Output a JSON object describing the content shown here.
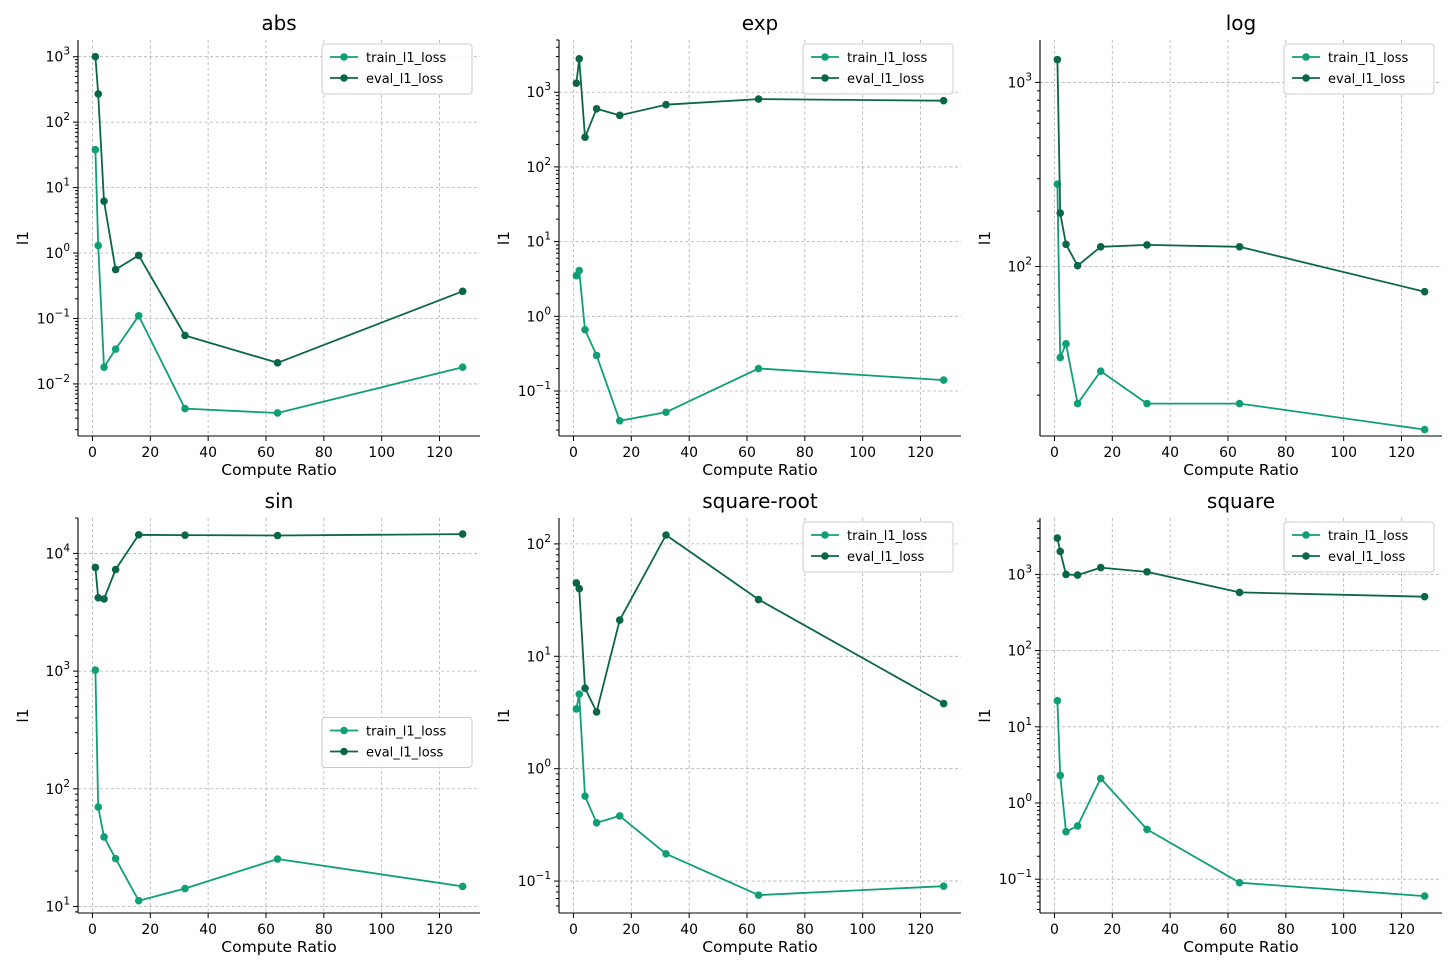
{
  "colors": {
    "train": "#109e77",
    "eval": "#0a6649"
  },
  "chart_data": [
    {
      "type": "line",
      "title": "abs",
      "xlabel": "Compute Ratio",
      "ylabel": "l1",
      "yscale": "log",
      "xlim": [
        -5,
        134
      ],
      "ylim": [
        0.0016,
        1800
      ],
      "xticks": [
        0,
        20,
        40,
        60,
        80,
        100,
        120
      ],
      "yticks": [
        {
          "v": 0.01,
          "b": "10",
          "e": "−2"
        },
        {
          "v": 0.1,
          "b": "10",
          "e": "−1"
        },
        {
          "v": 1,
          "b": "10",
          "e": "0"
        },
        {
          "v": 10,
          "b": "10",
          "e": "1"
        },
        {
          "v": 100,
          "b": "10",
          "e": "2"
        },
        {
          "v": 1000,
          "b": "10",
          "e": "3"
        }
      ],
      "legend": "top-right",
      "grid": true,
      "x": [
        1,
        2,
        4,
        8,
        16,
        32,
        64,
        128
      ],
      "series": [
        {
          "name": "train_l1_loss",
          "values": [
            38,
            1.3,
            0.018,
            0.034,
            0.11,
            0.0042,
            0.0036,
            0.018
          ]
        },
        {
          "name": "eval_l1_loss",
          "values": [
            1000,
            270,
            6.2,
            0.56,
            0.92,
            0.055,
            0.021,
            0.26
          ]
        }
      ]
    },
    {
      "type": "line",
      "title": "exp",
      "xlabel": "Compute Ratio",
      "ylabel": "l1",
      "yscale": "log",
      "xlim": [
        -5,
        134
      ],
      "ylim": [
        0.025,
        5000
      ],
      "xticks": [
        0,
        20,
        40,
        60,
        80,
        100,
        120
      ],
      "yticks": [
        {
          "v": 0.1,
          "b": "10",
          "e": "−1"
        },
        {
          "v": 1,
          "b": "10",
          "e": "0"
        },
        {
          "v": 10,
          "b": "10",
          "e": "1"
        },
        {
          "v": 100,
          "b": "10",
          "e": "2"
        },
        {
          "v": 1000,
          "b": "10",
          "e": "3"
        }
      ],
      "legend": "top-right",
      "grid": true,
      "x": [
        1,
        2,
        4,
        8,
        16,
        32,
        64,
        128
      ],
      "series": [
        {
          "name": "train_l1_loss",
          "values": [
            3.5,
            4.1,
            0.66,
            0.3,
            0.04,
            0.052,
            0.2,
            0.14
          ]
        },
        {
          "name": "eval_l1_loss",
          "values": [
            1320,
            2800,
            250,
            600,
            490,
            680,
            810,
            770
          ]
        }
      ]
    },
    {
      "type": "line",
      "title": "log",
      "xlabel": "Compute Ratio",
      "ylabel": "l1",
      "yscale": "log",
      "xlim": [
        -5,
        134
      ],
      "ylim": [
        12,
        1700
      ],
      "xticks": [
        0,
        20,
        40,
        60,
        80,
        100,
        120
      ],
      "yticks": [
        {
          "v": 100,
          "b": "10",
          "e": "2"
        },
        {
          "v": 1000,
          "b": "10",
          "e": "3"
        }
      ],
      "legend": "top-right",
      "grid": true,
      "x": [
        1,
        2,
        4,
        8,
        16,
        32,
        64,
        128
      ],
      "series": [
        {
          "name": "train_l1_loss",
          "values": [
            280,
            32,
            38,
            18,
            27,
            18,
            18,
            13
          ]
        },
        {
          "name": "eval_l1_loss",
          "values": [
            1330,
            195,
            132,
            101,
            128,
            131,
            128,
            73
          ]
        }
      ]
    },
    {
      "type": "line",
      "title": "sin",
      "xlabel": "Compute Ratio",
      "ylabel": "l1",
      "yscale": "log",
      "xlim": [
        -5,
        134
      ],
      "ylim": [
        8.8,
        20000
      ],
      "xticks": [
        0,
        20,
        40,
        60,
        80,
        100,
        120
      ],
      "yticks": [
        {
          "v": 10,
          "b": "10",
          "e": "1"
        },
        {
          "v": 100,
          "b": "10",
          "e": "2"
        },
        {
          "v": 1000,
          "b": "10",
          "e": "3"
        },
        {
          "v": 10000,
          "b": "10",
          "e": "4"
        }
      ],
      "legend": "center-right",
      "grid": true,
      "x": [
        1,
        2,
        4,
        8,
        16,
        32,
        64,
        128
      ],
      "series": [
        {
          "name": "train_l1_loss",
          "values": [
            1020,
            70,
            39,
            25.5,
            11.2,
            14.2,
            25.3,
            14.8
          ]
        },
        {
          "name": "eval_l1_loss",
          "values": [
            7600,
            4200,
            4100,
            7300,
            14400,
            14300,
            14200,
            14600
          ]
        }
      ]
    },
    {
      "type": "line",
      "title": "square-root",
      "xlabel": "Compute Ratio",
      "ylabel": "l1",
      "yscale": "log",
      "xlim": [
        -5,
        134
      ],
      "ylim": [
        0.052,
        170
      ],
      "xticks": [
        0,
        20,
        40,
        60,
        80,
        100,
        120
      ],
      "yticks": [
        {
          "v": 0.1,
          "b": "10",
          "e": "−1"
        },
        {
          "v": 1,
          "b": "10",
          "e": "0"
        },
        {
          "v": 10,
          "b": "10",
          "e": "1"
        },
        {
          "v": 100,
          "b": "10",
          "e": "2"
        }
      ],
      "legend": "top-right",
      "grid": true,
      "x": [
        1,
        2,
        4,
        8,
        16,
        32,
        64,
        128
      ],
      "series": [
        {
          "name": "train_l1_loss",
          "values": [
            3.4,
            4.6,
            0.57,
            0.33,
            0.38,
            0.175,
            0.075,
            0.09
          ]
        },
        {
          "name": "eval_l1_loss",
          "values": [
            45,
            40,
            5.2,
            3.2,
            21,
            120,
            32,
            3.8
          ]
        }
      ]
    },
    {
      "type": "line",
      "title": "square",
      "xlabel": "Compute Ratio",
      "ylabel": "l1",
      "yscale": "log",
      "xlim": [
        -5,
        134
      ],
      "ylim": [
        0.036,
        5500
      ],
      "xticks": [
        0,
        20,
        40,
        60,
        80,
        100,
        120
      ],
      "yticks": [
        {
          "v": 0.1,
          "b": "10",
          "e": "−1"
        },
        {
          "v": 1,
          "b": "10",
          "e": "0"
        },
        {
          "v": 10,
          "b": "10",
          "e": "1"
        },
        {
          "v": 100,
          "b": "10",
          "e": "2"
        },
        {
          "v": 1000,
          "b": "10",
          "e": "3"
        }
      ],
      "legend": "top-right",
      "grid": true,
      "x": [
        1,
        2,
        4,
        8,
        16,
        32,
        64,
        128
      ],
      "series": [
        {
          "name": "train_l1_loss",
          "values": [
            22,
            2.3,
            0.42,
            0.5,
            2.1,
            0.45,
            0.09,
            0.06
          ]
        },
        {
          "name": "eval_l1_loss",
          "values": [
            3000,
            2000,
            1000,
            980,
            1230,
            1080,
            580,
            510
          ]
        }
      ]
    }
  ]
}
